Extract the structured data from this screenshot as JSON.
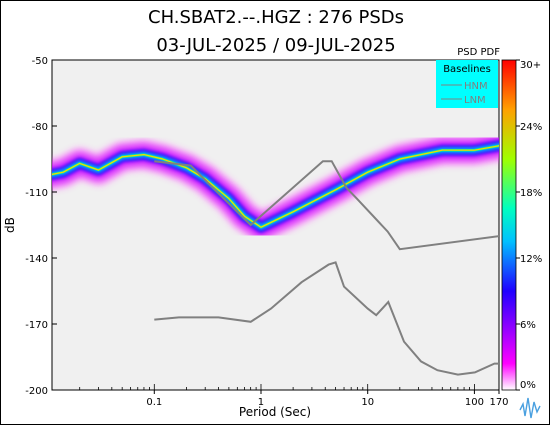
{
  "header": {
    "title": "CH.SBAT2.--.HGZ : 276 PSDs",
    "subtitle": "03-JUL-2025 / 09-JUL-2025"
  },
  "colorbar": {
    "title": "PSD PDF",
    "tick_labels": [
      "30+",
      "24%",
      "18%",
      "12%",
      "6%",
      "0%"
    ],
    "tick_values": [
      30,
      24,
      18,
      12,
      6,
      0
    ]
  },
  "legend": {
    "title": "Baselines",
    "entries": [
      "HNM",
      "LNM"
    ],
    "background": "#00ffff"
  },
  "colors": {
    "plot_background": "#f0f0f0",
    "noise_models": "#808080",
    "pdf_low": "#ff00ff",
    "pdf_high": "#ff0000"
  },
  "chart_data": {
    "type": "line",
    "title": "CH.SBAT2.--.HGZ : 276 PSDs",
    "subtitle": "03-JUL-2025 / 09-JUL-2025",
    "xlabel": "Period (Sec)",
    "ylabel": "dB",
    "xscale": "log",
    "xlim": [
      0.011,
      170
    ],
    "ylim": [
      -200,
      -50
    ],
    "x_ticks": [
      0.1,
      1,
      10,
      100,
      170
    ],
    "x_tick_labels": [
      "0.1",
      "1",
      "10",
      "100",
      "170"
    ],
    "y_ticks": [
      -50,
      -80,
      -110,
      -140,
      -170,
      -200
    ],
    "y_tick_labels": [
      "-50",
      "-80",
      "-110",
      "-140",
      "-170",
      "-200"
    ],
    "grid": false,
    "legend_position": "top-right",
    "series": [
      {
        "name": "HNM",
        "x": [
          0.1,
          0.22,
          0.32,
          0.8,
          3.8,
          4.6,
          6.3,
          7.9,
          15.4,
          20,
          354.8
        ],
        "y": [
          -96,
          -98,
          -106,
          -125,
          -96,
          -96,
          -108,
          -113,
          -128,
          -136,
          -128
        ]
      },
      {
        "name": "LNM",
        "x": [
          0.1,
          0.17,
          0.4,
          0.8,
          1.24,
          2.4,
          4.3,
          5,
          6,
          10,
          12,
          15.6,
          21.9,
          31.6,
          45,
          70,
          101,
          154,
          328
        ],
        "y": [
          -168,
          -167,
          -167,
          -169,
          -163,
          -151,
          -143,
          -142,
          -153,
          -163,
          -166,
          -160,
          -178,
          -187,
          -191,
          -193,
          -192,
          -188,
          -188
        ]
      },
      {
        "name": "Mode",
        "x": [
          0.011,
          0.014,
          0.02,
          0.03,
          0.05,
          0.08,
          0.12,
          0.2,
          0.3,
          0.5,
          0.7,
          1,
          2,
          5,
          10,
          20,
          50,
          100,
          170
        ],
        "y": [
          -102,
          -101,
          -97,
          -100,
          -94,
          -93,
          -95,
          -99,
          -104,
          -113,
          -121,
          -126,
          -119,
          -109,
          -101,
          -95,
          -91,
          -91,
          -89
        ]
      }
    ],
    "pdf_percent_range": [
      0,
      30
    ]
  }
}
